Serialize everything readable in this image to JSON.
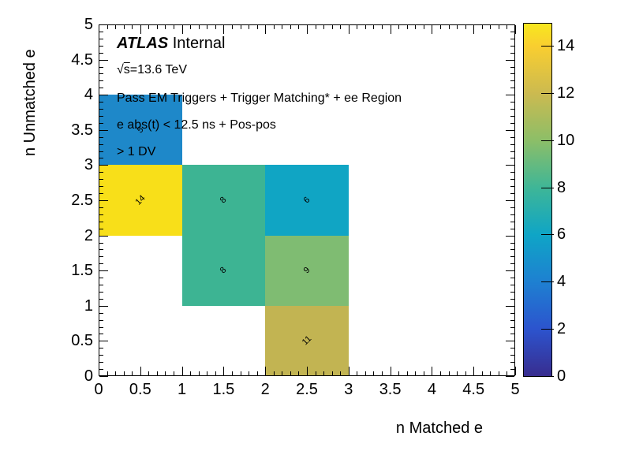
{
  "chart_data": {
    "type": "heatmap",
    "title": "",
    "xlabel": "n Matched e",
    "ylabel": "n Unmatched e",
    "xlim": [
      0,
      5
    ],
    "ylim": [
      0,
      5
    ],
    "zlim": [
      0,
      15
    ],
    "grid": false,
    "legend_position": "right-colorbar",
    "x_tick_labels": [
      "0",
      "0.5",
      "1",
      "1.5",
      "2",
      "2.5",
      "3",
      "3.5",
      "4",
      "4.5",
      "5"
    ],
    "y_tick_labels": [
      "0",
      "0.5",
      "1",
      "1.5",
      "2",
      "2.5",
      "3",
      "3.5",
      "4",
      "4.5",
      "5"
    ],
    "colorbar_ticks": [
      0,
      2,
      4,
      6,
      8,
      10,
      12,
      14
    ],
    "bin_size": 1,
    "bins": [
      {
        "x": 0,
        "y": 3,
        "value": 5,
        "color": "#1E88C9"
      },
      {
        "x": 0,
        "y": 2,
        "value": 14,
        "color": "#F8DF19"
      },
      {
        "x": 1,
        "y": 2,
        "value": 8,
        "color": "#3DB493"
      },
      {
        "x": 2,
        "y": 2,
        "value": 6,
        "color": "#10A5C4"
      },
      {
        "x": 1,
        "y": 1,
        "value": 8,
        "color": "#3DB493"
      },
      {
        "x": 2,
        "y": 1,
        "value": 9,
        "color": "#7FBC72"
      },
      {
        "x": 2,
        "y": 0,
        "value": 11,
        "color": "#C2B452"
      }
    ],
    "colorbar_stops": [
      {
        "pos": 0,
        "color": "#382D8F"
      },
      {
        "pos": 13.4,
        "color": "#2C54CE"
      },
      {
        "pos": 26.7,
        "color": "#1E80D1"
      },
      {
        "pos": 40.1,
        "color": "#0FA5C6"
      },
      {
        "pos": 53.4,
        "color": "#3EB697"
      },
      {
        "pos": 66.8,
        "color": "#8CBE68"
      },
      {
        "pos": 80.1,
        "color": "#CBBA50"
      },
      {
        "pos": 93.5,
        "color": "#F9CE30"
      },
      {
        "pos": 100,
        "color": "#F8E71E"
      }
    ],
    "annotations": [
      "ATLAS Internal",
      "√s=13.6 TeV",
      "Pass EM Triggers + Trigger Matching* + ee Region",
      "e abs(t) < 12.5 ns + Pos-pos",
      "> 1 DV"
    ]
  },
  "labels": {
    "atlas": "ATLAS",
    "internal": "Internal",
    "sqrt_symbol": "√",
    "sqrt_s": "s",
    "sqrt_rest": "=13.6 TeV",
    "cond1": "Pass EM Triggers + Trigger Matching* + ee Region",
    "cond2": "e abs(t) < 12.5 ns + Pos-pos",
    "cond3": "> 1 DV",
    "x_axis_title": "n Matched e",
    "y_axis_title": "n Unmatched e"
  }
}
